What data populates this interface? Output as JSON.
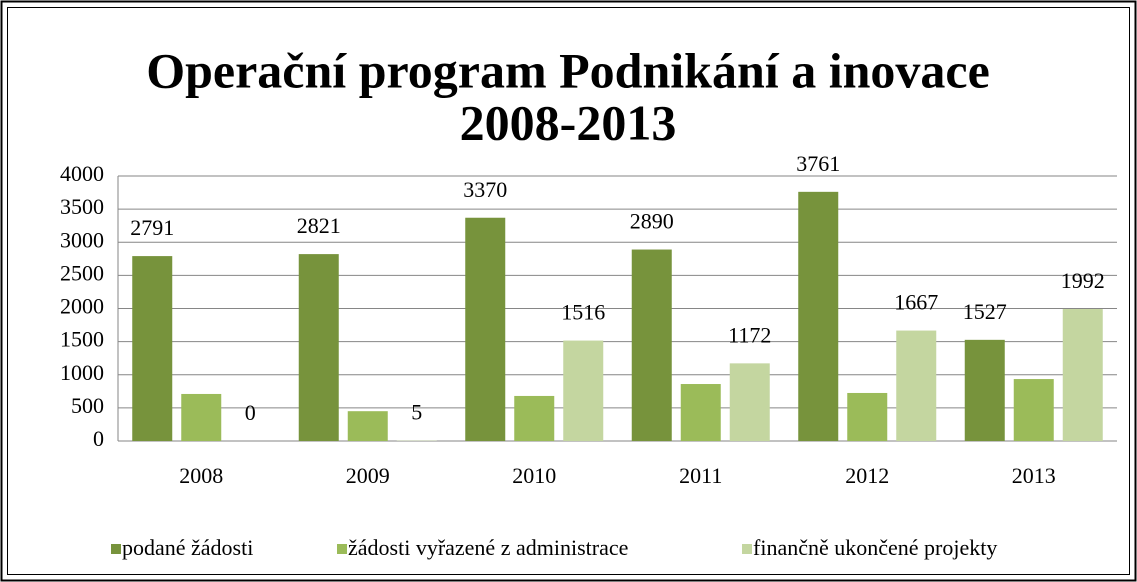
{
  "chart_data": {
    "type": "bar",
    "title": "Operační program Podnikání a inovace",
    "subtitle": "2008-2013",
    "categories": [
      "2008",
      "2009",
      "2010",
      "2011",
      "2012",
      "2013"
    ],
    "series": [
      {
        "name": "podané žádosti",
        "color": "#77933c",
        "labels": true,
        "values": [
          2791,
          2821,
          3370,
          2890,
          3761,
          1527
        ]
      },
      {
        "name": "žádosti vyřazené z administrace",
        "color": "#9bbb59",
        "labels": false,
        "values": [
          710,
          450,
          680,
          860,
          725,
          935
        ]
      },
      {
        "name": "finančně ukončené projekty",
        "color": "#c4d6a0",
        "labels": true,
        "values": [
          0,
          5,
          1516,
          1172,
          1667,
          1992
        ]
      }
    ],
    "ylim": [
      0,
      4000
    ],
    "yticks": [
      0,
      500,
      1000,
      1500,
      2000,
      2500,
      3000,
      3500,
      4000
    ],
    "grid": true,
    "legend": "bottom"
  }
}
